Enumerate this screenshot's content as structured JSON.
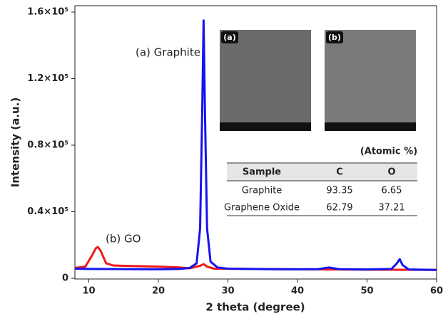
{
  "chart_data": {
    "type": "line",
    "x_label": "2 theta (degree)",
    "y_label": "Intensity (a.u.)",
    "xlim": [
      8,
      60
    ],
    "xticks": [
      10,
      20,
      30,
      40,
      50,
      60
    ],
    "ylim": [
      0,
      160000
    ],
    "yticks": [
      0,
      {
        "value": 40000,
        "label": "0.4×10⁵"
      },
      {
        "value": 80000,
        "label": "0.8×10⁵"
      },
      {
        "value": 120000,
        "label": "1.2×10⁵"
      },
      {
        "value": 160000,
        "label": "1.6×10⁵"
      }
    ],
    "series": [
      {
        "name": "(b) GO",
        "color": "#f01818",
        "x": [
          8,
          9.5,
          10.5,
          11,
          11.3,
          11.7,
          12.5,
          13.5,
          15,
          20,
          23,
          24.5,
          26,
          26.5,
          27,
          28,
          30,
          40,
          50,
          60
        ],
        "values": [
          6200,
          7000,
          14000,
          18000,
          18800,
          16500,
          9000,
          7700,
          7500,
          7000,
          6500,
          6000,
          7500,
          8500,
          7000,
          5800,
          5700,
          5400,
          5200,
          5000
        ]
      },
      {
        "name": "(a) Graphite",
        "color": "#1414f0",
        "x": [
          8,
          10,
          15,
          20,
          23,
          24.5,
          25.5,
          26,
          26.3,
          26.5,
          26.7,
          27,
          27.5,
          28.5,
          30,
          35,
          40,
          43,
          44.5,
          46,
          50,
          53.5,
          54.3,
          54.7,
          55.1,
          56,
          60
        ],
        "values": [
          5800,
          5600,
          5500,
          5400,
          5600,
          6200,
          9000,
          30000,
          100000,
          155000,
          100000,
          30000,
          10000,
          6500,
          5800,
          5500,
          5400,
          5500,
          6500,
          5500,
          5300,
          5600,
          9000,
          11500,
          8000,
          5300,
          5000
        ]
      }
    ],
    "annotations": [
      "(a) Graphite",
      "(b) GO"
    ],
    "inset_images": [
      {
        "label": "(a)"
      },
      {
        "label": "(b)"
      }
    ],
    "table": {
      "caption": "(Atomic %)",
      "header": [
        "Sample",
        "C",
        "O"
      ],
      "rows": [
        [
          "Graphite",
          "93.35",
          "6.65"
        ],
        [
          "Graphene Oxide",
          "62.79",
          "37.21"
        ]
      ]
    }
  }
}
